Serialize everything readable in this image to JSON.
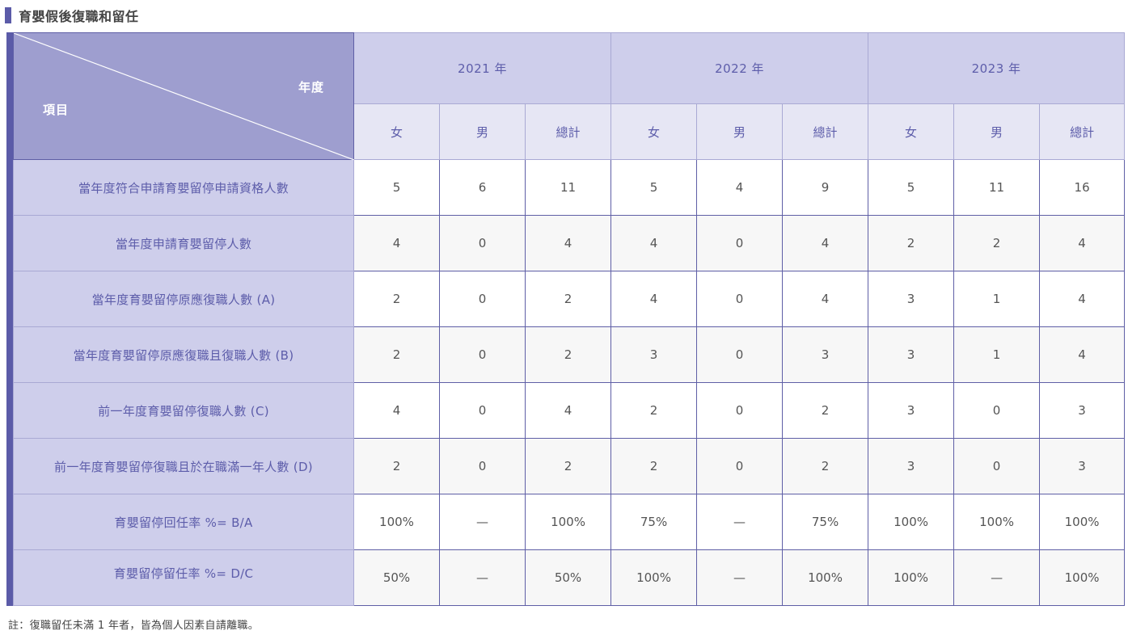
{
  "title": "育嬰假後復職和留任",
  "corner": {
    "year_label": "年度",
    "item_label": "項目"
  },
  "years": [
    "2021 年",
    "2022 年",
    "2023 年"
  ],
  "sub_headers": [
    "女",
    "男",
    "總計"
  ],
  "rows": [
    {
      "label": "當年度符合申請育嬰留停申請資格人數",
      "values": [
        "5",
        "6",
        "11",
        "5",
        "4",
        "9",
        "5",
        "11",
        "16"
      ]
    },
    {
      "label": "當年度申請育嬰留停人數",
      "values": [
        "4",
        "0",
        "4",
        "4",
        "0",
        "4",
        "2",
        "2",
        "4"
      ]
    },
    {
      "label": "當年度育嬰留停原應復職人數 (A)",
      "values": [
        "2",
        "0",
        "2",
        "4",
        "0",
        "4",
        "3",
        "1",
        "4"
      ]
    },
    {
      "label": "當年度育嬰留停原應復職且復職人數 (B)",
      "values": [
        "2",
        "0",
        "2",
        "3",
        "0",
        "3",
        "3",
        "1",
        "4"
      ]
    },
    {
      "label": "前一年度育嬰留停復職人數 (C)",
      "values": [
        "4",
        "0",
        "4",
        "2",
        "0",
        "2",
        "3",
        "0",
        "3"
      ]
    },
    {
      "label": "前一年度育嬰留停復職且於在職滿一年人數 (D)",
      "values": [
        "2",
        "0",
        "2",
        "2",
        "0",
        "2",
        "3",
        "0",
        "3"
      ]
    },
    {
      "label": "育嬰留停回任率 %= B/A",
      "values": [
        "100%",
        "—",
        "100%",
        "75%",
        "—",
        "75%",
        "100%",
        "100%",
        "100%"
      ]
    },
    {
      "label": "育嬰留停留任率 %= D/C",
      "values": [
        "50%",
        "—",
        "50%",
        "100%",
        "—",
        "100%",
        "100%",
        "—",
        "100%"
      ]
    }
  ],
  "footnote": "註：復職留任未滿 1 年者，皆為個人因素自請離職。"
}
